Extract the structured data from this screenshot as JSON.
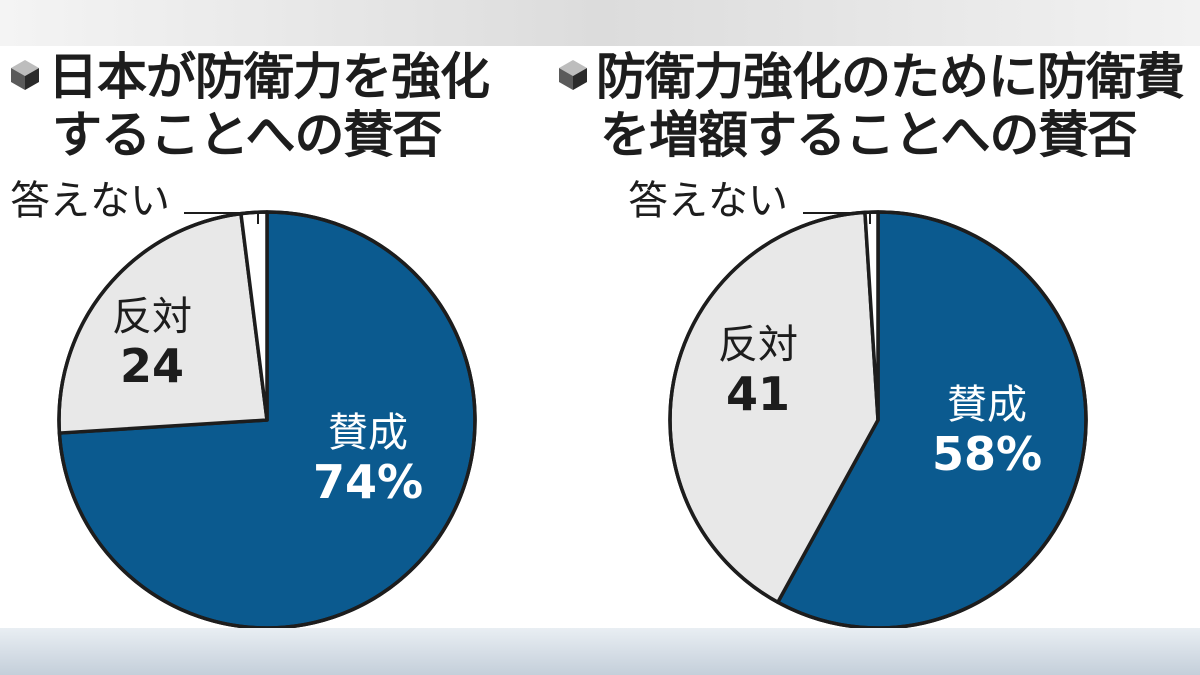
{
  "chart_data": [
    {
      "type": "pie",
      "title": [
        "日本が防衛力を強化",
        "することへの賛否"
      ],
      "slices": [
        {
          "label": "賛成",
          "value": 74,
          "value_text": "74%",
          "color": "#0b5a8f",
          "text_color": "#ffffff"
        },
        {
          "label": "反対",
          "value": 24,
          "value_text": "24",
          "color": "#e8e8e8",
          "text_color": "#1d1d1d"
        },
        {
          "label": "答えない",
          "value": 2,
          "value_text": "",
          "color": "#ffffff",
          "text_color": "#1d1d1d"
        }
      ]
    },
    {
      "type": "pie",
      "title": [
        "防衛力強化のために防衛費",
        "を増額することへの賛否"
      ],
      "slices": [
        {
          "label": "賛成",
          "value": 58,
          "value_text": "58%",
          "color": "#0b5a8f",
          "text_color": "#ffffff"
        },
        {
          "label": "反対",
          "value": 41,
          "value_text": "41",
          "color": "#e8e8e8",
          "text_color": "#1d1d1d"
        },
        {
          "label": "答えない",
          "value": 1,
          "value_text": "",
          "color": "#ffffff",
          "text_color": "#1d1d1d"
        }
      ]
    }
  ]
}
